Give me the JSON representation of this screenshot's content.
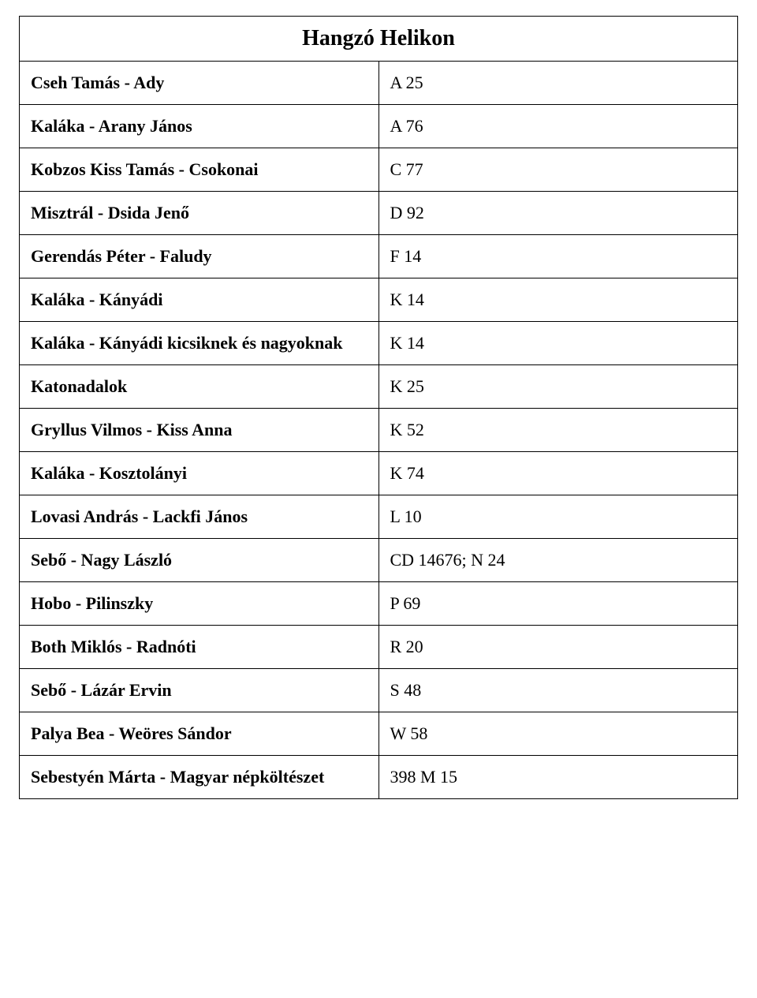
{
  "table": {
    "title": "Hangzó Helikon",
    "title_fontsize": 28,
    "row_fontsize": 22,
    "border_color": "#000000",
    "background_color": "#ffffff",
    "text_color": "#000000",
    "font_family": "Times New Roman",
    "columns": [
      {
        "key": "name",
        "width_percent": 58,
        "font_weight": "bold",
        "align": "left"
      },
      {
        "key": "code",
        "width_percent": 42,
        "font_weight": "normal",
        "align": "left"
      }
    ],
    "rows": [
      {
        "name": "Cseh Tamás - Ady",
        "code": "A 25"
      },
      {
        "name": "Kaláka - Arany János",
        "code": "A 76"
      },
      {
        "name": "Kobzos Kiss Tamás - Csokonai",
        "code": "C 77"
      },
      {
        "name": "Misztrál - Dsida Jenő",
        "code": "D 92"
      },
      {
        "name": "Gerendás Péter - Faludy",
        "code": "F 14"
      },
      {
        "name": "Kaláka - Kányádi",
        "code": "K 14"
      },
      {
        "name": "Kaláka - Kányádi kicsiknek és nagyoknak",
        "code": "K 14"
      },
      {
        "name": "Katonadalok",
        "code": "K 25"
      },
      {
        "name": "Gryllus Vilmos - Kiss Anna",
        "code": "K 52"
      },
      {
        "name": "Kaláka - Kosztolányi",
        "code": "K 74"
      },
      {
        "name": "Lovasi András - Lackfi János",
        "code": "L 10"
      },
      {
        "name": "Sebő - Nagy László",
        "code": "CD 14676; N 24"
      },
      {
        "name": "Hobo - Pilinszky",
        "code": "P 69"
      },
      {
        "name": "Both Miklós - Radnóti",
        "code": "R 20"
      },
      {
        "name": "Sebő - Lázár Ervin",
        "code": "S 48"
      },
      {
        "name": "Palya Bea - Weöres Sándor",
        "code": "W 58"
      },
      {
        "name": "Sebestyén Márta - Magyar népköltészet",
        "code": "398 M 15"
      }
    ]
  }
}
